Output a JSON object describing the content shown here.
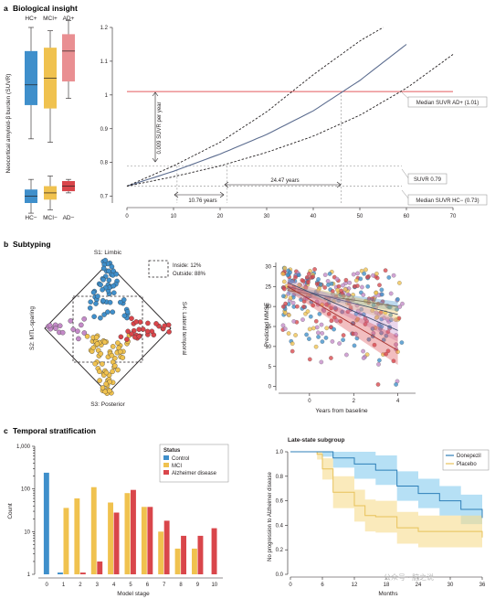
{
  "colors": {
    "control": "#3f8fcb",
    "mci": "#f0c24f",
    "ad": "#d9464b",
    "ad_pale": "#e98f92",
    "curve": "#5b6c8f",
    "redline": "#e35a5e",
    "purple": "#c48ac8",
    "donepezil_band": "#86ccee",
    "placebo_band": "#f6dc8d",
    "donepezil_line": "#2e7fb8",
    "placebo_line": "#e8c25a"
  },
  "panel_a": {
    "letter": "a",
    "title": "Biological insight",
    "box_labels_top": [
      "HC+",
      "MCI+",
      "AD+"
    ],
    "box_labels_bottom": [
      "HC−",
      "MCI−",
      "AD−"
    ],
    "ylabel": "Neocortical amyloid-β burden (SUVR)",
    "arrow_label": "0.009 SUVR per year",
    "label_10": "10.76 years",
    "label_24": "24.47 years",
    "callout_ad": "Median SUVR AD+ (1.01)",
    "callout_suvr": "SUVR 0.79",
    "callout_hc": "Median SUVR HC− (0.73)"
  },
  "panel_b": {
    "letter": "b",
    "title": "Subtyping",
    "vertex_top": "S1: Limbic",
    "vertex_left": "S2: MTL-sparing",
    "vertex_bottom": "S3: Posterior",
    "vertex_right": "S4: Lateral temporal",
    "legend_inside": "Inside: 12%",
    "legend_outside": "Outside: 88%",
    "scatter_ylabel": "Predicted MMSE",
    "scatter_xlabel": "Years from baseline"
  },
  "panel_c": {
    "letter": "c",
    "title": "Temporal stratification",
    "legend_title": "Status",
    "legend_items": [
      "Control",
      "MCI",
      "Alzheimer disease"
    ],
    "bar_ylabel": "Count",
    "bar_xlabel": "Model stage",
    "km_title": "Late-state subgroup",
    "km_ylabel": "No progression to Alzheimer disease",
    "km_xlabel": "Months",
    "km_legend": [
      "Donepezil",
      "Placebo"
    ],
    "watermark": "公众号 · 脑之说"
  },
  "chart_data": [
    {
      "type": "box",
      "title": "Biological insight",
      "ylabel": "Neocortical amyloid-β burden (SUVR)",
      "groups": [
        {
          "name": "HC+",
          "whisker": [
            0.87,
            1.2
          ],
          "q": [
            0.97,
            1.03,
            1.13
          ]
        },
        {
          "name": "MCI+",
          "whisker": [
            0.86,
            1.19
          ],
          "q": [
            0.96,
            1.05,
            1.14
          ]
        },
        {
          "name": "AD+",
          "whisker": [
            0.99,
            1.22
          ],
          "q": [
            1.04,
            1.13,
            1.18
          ]
        },
        {
          "name": "HC−",
          "whisker": [
            0.65,
            0.75
          ],
          "q": [
            0.68,
            0.7,
            0.72
          ]
        },
        {
          "name": "MCI−",
          "whisker": [
            0.66,
            0.76
          ],
          "q": [
            0.69,
            0.71,
            0.73
          ]
        },
        {
          "name": "AD−",
          "whisker": [
            0.71,
            0.75
          ],
          "q": [
            0.715,
            0.73,
            0.745
          ]
        }
      ]
    },
    {
      "type": "line",
      "xlim": [
        0,
        70
      ],
      "ylim": [
        0.68,
        1.2
      ],
      "xticks": [
        0,
        10,
        20,
        30,
        40,
        50,
        60,
        70
      ],
      "yticks": [
        0.7,
        0.8,
        0.9,
        1.0,
        1.1,
        1.2
      ],
      "ytick_labels": [
        "0.7",
        "0.8",
        "0.9",
        "1",
        "1.1",
        "1.2"
      ],
      "series": [
        {
          "x": [
            0,
            10,
            20,
            30,
            40,
            50,
            60
          ],
          "y": [
            0.73,
            0.774,
            0.825,
            0.883,
            0.953,
            1.043,
            1.15
          ]
        },
        {
          "x": [
            0,
            10,
            20,
            30,
            40,
            50,
            55
          ],
          "y": [
            0.73,
            0.79,
            0.86,
            0.95,
            1.06,
            1.16,
            1.2
          ]
        },
        {
          "x": [
            0,
            10,
            20,
            30,
            40,
            50,
            60,
            70
          ],
          "y": [
            0.73,
            0.758,
            0.79,
            0.83,
            0.878,
            0.94,
            1.02,
            1.12
          ]
        }
      ],
      "hlines": [
        1.01,
        0.79,
        0.73
      ]
    },
    {
      "type": "scatter",
      "ylabel": "Predicted MMSE",
      "xlabel": "Years from baseline",
      "xlim": [
        -1.4,
        4.8
      ],
      "ylim": [
        -1,
        31
      ],
      "xticks": [
        0,
        2,
        4
      ],
      "yticks": [
        0,
        5,
        10,
        15,
        20,
        25,
        30
      ],
      "trend_lines": [
        {
          "series": "Control",
          "x": [
            -1,
            4
          ],
          "y": [
            24,
            20
          ]
        },
        {
          "series": "MCI",
          "x": [
            -1,
            4
          ],
          "y": [
            25,
            18
          ]
        },
        {
          "series": "Limbic",
          "x": [
            -1,
            4
          ],
          "y": [
            26,
            14
          ]
        },
        {
          "series": "Alzheimer disease",
          "x": [
            -1,
            4
          ],
          "y": [
            25,
            9
          ]
        }
      ]
    },
    {
      "type": "bar",
      "xlabel": "Model stage",
      "ylabel": "Count",
      "categories": [
        "0",
        "1",
        "2",
        "3",
        "4",
        "5",
        "6",
        "7",
        "8",
        "9",
        "10"
      ],
      "yscale": "log",
      "ylim": [
        1,
        1000
      ],
      "yticks": [
        1,
        10,
        100,
        1000
      ],
      "ytick_labels": [
        "1",
        "10",
        "100",
        "1,000"
      ],
      "series": [
        {
          "name": "Control",
          "values": [
            240,
            1.1,
            0,
            0,
            0,
            0,
            0,
            0,
            0,
            0,
            0
          ]
        },
        {
          "name": "MCI",
          "values": [
            0,
            36,
            60,
            110,
            48,
            80,
            38,
            10,
            4,
            4,
            0
          ]
        },
        {
          "name": "Alzheimer disease",
          "values": [
            0,
            0,
            1.1,
            2,
            28,
            95,
            38,
            18,
            8,
            8,
            12
          ]
        }
      ]
    },
    {
      "type": "line",
      "title": "Late-state subgroup",
      "ylabel": "No progression to Alzheimer disease",
      "xlabel": "Months",
      "xticks": [
        0,
        6,
        12,
        18,
        24,
        30,
        36
      ],
      "yticks": [
        0,
        0.2,
        0.4,
        0.6,
        0.8,
        1.0
      ],
      "ytick_labels": [
        "0.0",
        "0.2",
        "0.4",
        "0.6",
        "0.8",
        "1.0"
      ],
      "series": [
        {
          "name": "Donepezil",
          "x": [
            0,
            6,
            8,
            12,
            16,
            20,
            24,
            28,
            32,
            35,
            36
          ],
          "y": [
            1,
            1,
            0.95,
            0.9,
            0.85,
            0.72,
            0.66,
            0.6,
            0.53,
            0.53,
            0.46
          ]
        },
        {
          "name": "Placebo",
          "x": [
            0,
            5,
            6,
            8,
            12,
            14,
            16,
            20,
            24,
            28,
            32,
            36
          ],
          "y": [
            1,
            0.98,
            0.86,
            0.67,
            0.56,
            0.48,
            0.47,
            0.38,
            0.35,
            0.35,
            0.35,
            0.3
          ]
        }
      ]
    }
  ]
}
